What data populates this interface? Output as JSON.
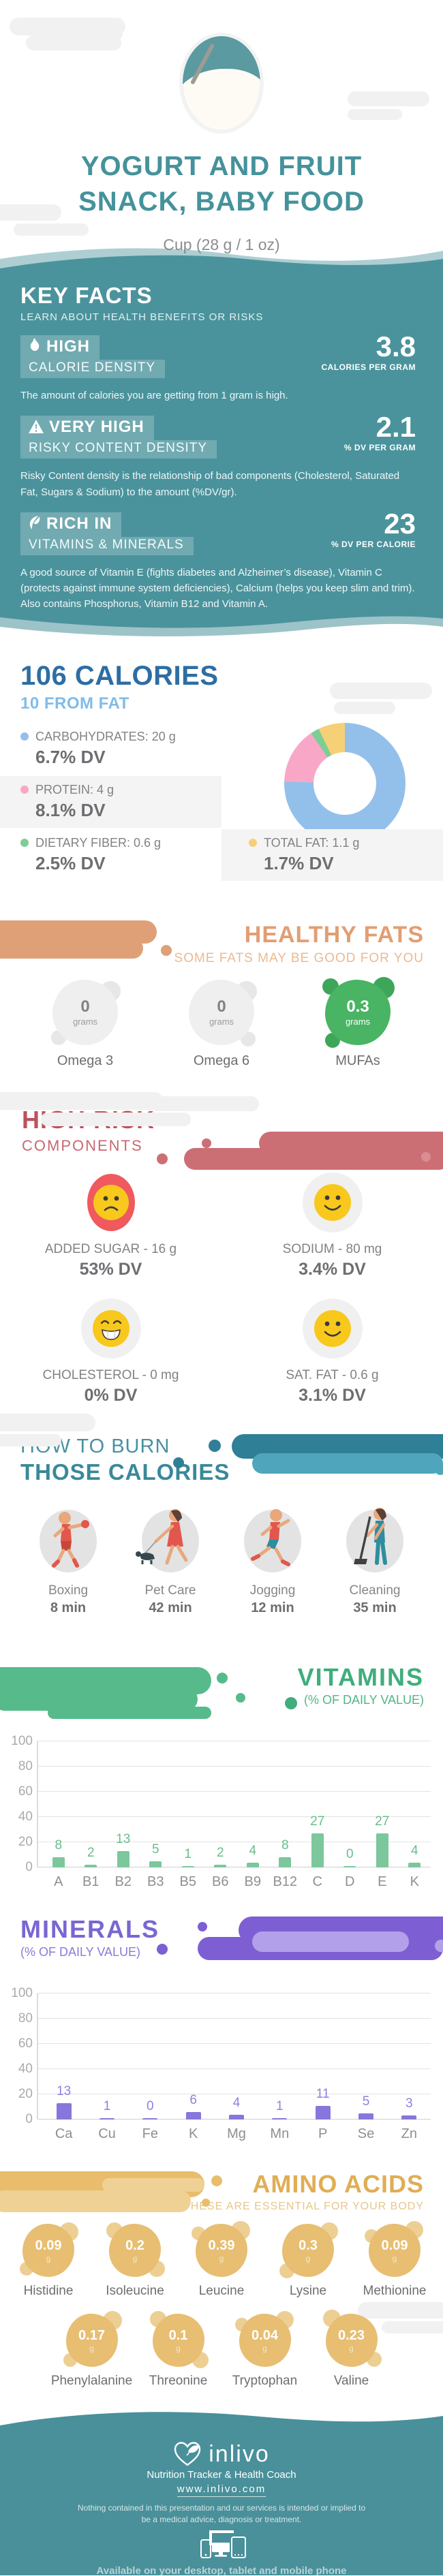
{
  "header": {
    "title_line1": "YOGURT AND FRUIT",
    "title_line2": "SNACK, BABY FOOD",
    "subtitle": "Cup (28 g / 1 oz)"
  },
  "key_facts": {
    "title": "KEY FACTS",
    "subtitle": "LEARN ABOUT HEALTH BENEFITS OR RISKS",
    "facts": [
      {
        "level": "HIGH",
        "metric": "CALORIE DENSITY",
        "value": "3.8",
        "unit": "CALORIES PER GRAM",
        "description": "The amount of calories you are getting from 1 gram is high."
      },
      {
        "level": "VERY HIGH",
        "metric": "RISKY CONTENT DENSITY",
        "value": "2.1",
        "unit": "% DV PER GRAM",
        "description": "Risky Content density is the relationship of bad components (Cholesterol, Saturated Fat, Sugars & Sodium) to the amount (%DV/gr)."
      },
      {
        "level": "RICH  IN",
        "metric": "VITAMINS & MINERALS",
        "value": "23",
        "unit": "% DV PER CALORIE",
        "description": "A good source of Vitamin E (fights diabetes and Alzheimer’s disease), Vitamin C (protects against immune system deficiencies), Calcium (helps you keep slim and trim). Also contains Phosphorus, Vitamin B12 and Vitamin A."
      }
    ]
  },
  "calories": {
    "title": "106 CALORIES",
    "subtitle": "10 FROM FAT",
    "legend": [
      {
        "label": "CARBOHYDRATES: 20 g",
        "dv": "6.7% DV",
        "color": "#92c0ea"
      },
      {
        "label": "PROTEIN: 4 g",
        "dv": "8.1% DV",
        "color": "#f8a8c6"
      },
      {
        "label": "DIETARY FIBER: 0.6 g",
        "dv": "2.5% DV",
        "color": "#7dce94"
      },
      {
        "label": "TOTAL FAT: 1.1 g",
        "dv": "1.7% DV",
        "color": "#f6d077"
      }
    ]
  },
  "healthy_fats": {
    "title": "HEALTHY FATS",
    "subtitle": "SOME FATS MAY BE GOOD FOR YOU",
    "items": [
      {
        "value": "0",
        "unit": "grams",
        "name": "Omega 3"
      },
      {
        "value": "0",
        "unit": "grams",
        "name": "Omega 6"
      },
      {
        "value": "0.3",
        "unit": "grams",
        "name": "MUFAs"
      }
    ]
  },
  "high_risk": {
    "title": "HIGH RISK",
    "subtitle": "COMPONENTS",
    "items": [
      {
        "label": "ADDED SUGAR - 16 g",
        "dv": "53% DV",
        "mood": "sad"
      },
      {
        "label": "SODIUM - 80 mg",
        "dv": "3.4% DV",
        "mood": "smile"
      },
      {
        "label": "CHOLESTEROL - 0 mg",
        "dv": "0% DV",
        "mood": "grin"
      },
      {
        "label": "SAT. FAT - 0.6 g",
        "dv": "3.1% DV",
        "mood": "smile"
      }
    ]
  },
  "burn": {
    "title_line1": "HOW TO BURN",
    "title_line2": "THOSE CALORIES",
    "activities": [
      {
        "name": "Boxing",
        "time": "8 min"
      },
      {
        "name": "Pet Care",
        "time": "42 min"
      },
      {
        "name": "Jogging",
        "time": "12 min"
      },
      {
        "name": "Cleaning",
        "time": "35 min"
      }
    ]
  },
  "vitamins_section": {
    "title": "VITAMINS",
    "subtitle": "(% OF DAILY VALUE)"
  },
  "minerals_section": {
    "title": "MINERALS",
    "subtitle": "(% OF DAILY VALUE)"
  },
  "chart_data": [
    {
      "type": "pie",
      "name": "calorie-composition-donut",
      "slices": [
        {
          "label": "Carbohydrates",
          "pct": 75.5,
          "color": "#92c0ea"
        },
        {
          "label": "Protein",
          "pct": 15.1,
          "color": "#f8a8c6"
        },
        {
          "label": "Dietary Fiber",
          "pct": 2.3,
          "color": "#7dce94"
        },
        {
          "label": "Total Fat",
          "pct": 7.1,
          "color": "#f6d077"
        }
      ]
    },
    {
      "type": "bar",
      "name": "vitamins",
      "title": "VITAMINS (% OF DAILY VALUE)",
      "categories": [
        "A",
        "B1",
        "B2",
        "B3",
        "B5",
        "B6",
        "B9",
        "B12",
        "C",
        "D",
        "E",
        "K"
      ],
      "values": [
        8,
        2,
        13,
        5,
        1,
        2,
        4,
        8,
        27,
        0,
        27,
        4
      ],
      "yticks": [
        0,
        20,
        40,
        60,
        80,
        100
      ],
      "ylim": [
        0,
        100
      ],
      "bar_color": "#7cc79b",
      "label_color": "#69bd8c"
    },
    {
      "type": "bar",
      "name": "minerals",
      "title": "MINERALS (% OF DAILY VALUE)",
      "categories": [
        "Ca",
        "Cu",
        "Fe",
        "K",
        "Mg",
        "Mn",
        "P",
        "Se",
        "Zn"
      ],
      "values": [
        13,
        1,
        0,
        6,
        4,
        1,
        11,
        5,
        3
      ],
      "yticks": [
        0,
        20,
        40,
        60,
        80,
        100
      ],
      "ylim": [
        0,
        100
      ],
      "bar_color": "#8677dd",
      "label_color": "#8f80e0"
    }
  ],
  "amino_acids": {
    "title": "AMINO ACIDS",
    "subtitle": "THESE ARE ESSENTIAL FOR YOUR BODY",
    "items": [
      {
        "value": "0.09",
        "unit": "g",
        "name": "Histidine"
      },
      {
        "value": "0.2",
        "unit": "g",
        "name": "Isoleucine"
      },
      {
        "value": "0.39",
        "unit": "g",
        "name": "Leucine"
      },
      {
        "value": "0.3",
        "unit": "g",
        "name": "Lysine"
      },
      {
        "value": "0.09",
        "unit": "g",
        "name": "Methionine"
      },
      {
        "value": "0.17",
        "unit": "g",
        "name": "Phenylalanine"
      },
      {
        "value": "0.1",
        "unit": "g",
        "name": "Threonine"
      },
      {
        "value": "0.04",
        "unit": "g",
        "name": "Tryptophan"
      },
      {
        "value": "0.23",
        "unit": "g",
        "name": "Valine"
      }
    ]
  },
  "footer": {
    "logo_text": "inlivo",
    "tagline": "Nutrition Tracker & Health Coach",
    "url": "www.inlivo.com",
    "disclaimer": "Nothing contained in this presentation and our services is intended or implied to be a medical advice, diagnosis or treatment.",
    "availability": "Available on your desktop, tablet and mobile phone"
  },
  "colors": {
    "teal_bg": "#4b939c",
    "accent_blue": "#2d6da4",
    "accent_orange": "#e29e73",
    "accent_red": "#be525b",
    "accent_teal": "#39899a",
    "accent_green": "#3fae7c",
    "accent_purple": "#7a66d2",
    "accent_gold": "#dfae55"
  }
}
